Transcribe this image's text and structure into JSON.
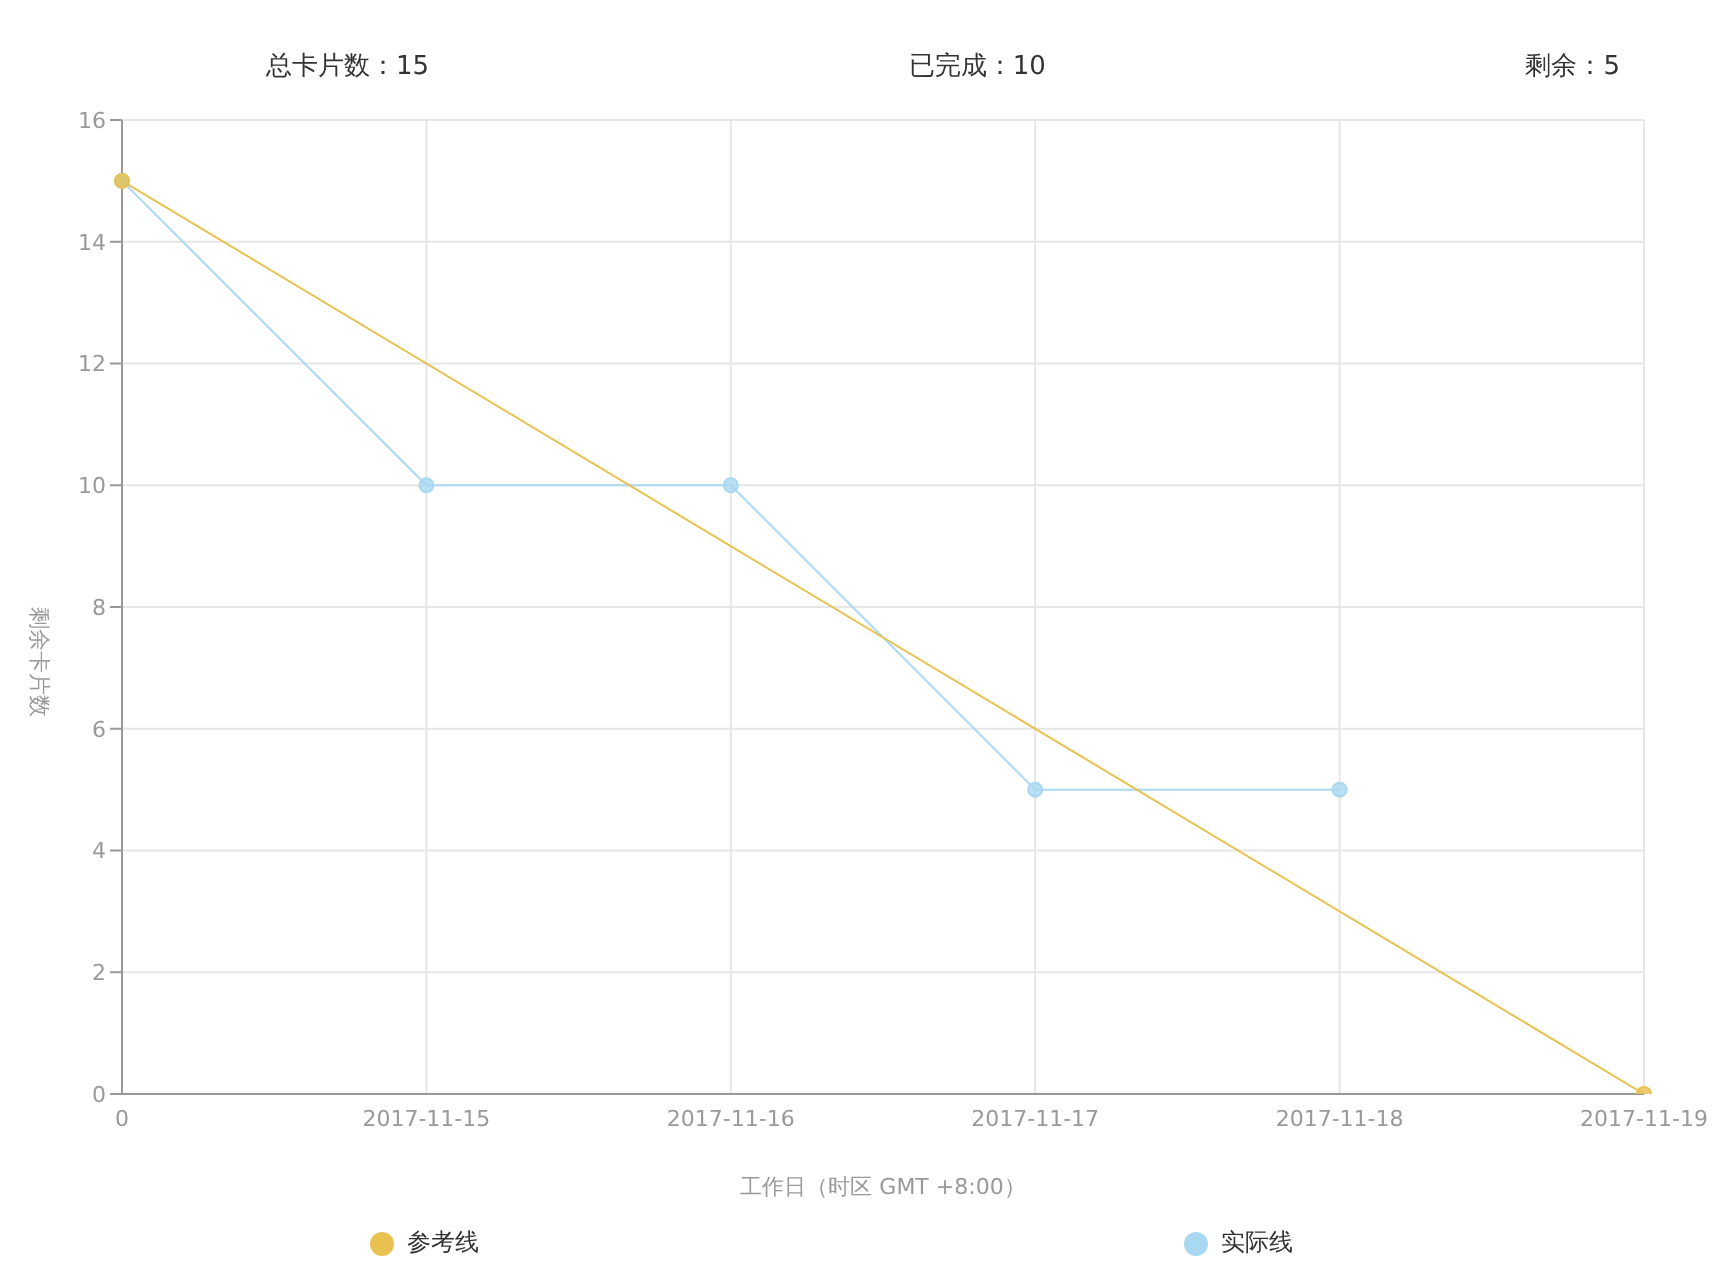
{
  "chart_data": {
    "type": "line",
    "annotations": [
      "总卡片数：15",
      "已完成：10",
      "剩余：5"
    ],
    "xlabel": "工作日（时区 GMT +8:00）",
    "ylabel": "剩余卡片数",
    "categories": [
      "0",
      "2017-11-15",
      "2017-11-16",
      "2017-11-17",
      "2017-11-18",
      "2017-11-19"
    ],
    "series": [
      {
        "name": "参考线",
        "color": "#e8c150",
        "values": [
          15,
          null,
          null,
          null,
          null,
          0
        ]
      },
      {
        "name": "实际线",
        "color": "#a9d8f2",
        "values": [
          15,
          10,
          10,
          5,
          5,
          null
        ]
      }
    ],
    "ylim": [
      0,
      16
    ],
    "yticks": [
      0,
      2,
      4,
      6,
      8,
      10,
      12,
      14,
      16
    ],
    "grid": true,
    "legend": "bottom",
    "marker": "circle",
    "line_style": "solid"
  }
}
